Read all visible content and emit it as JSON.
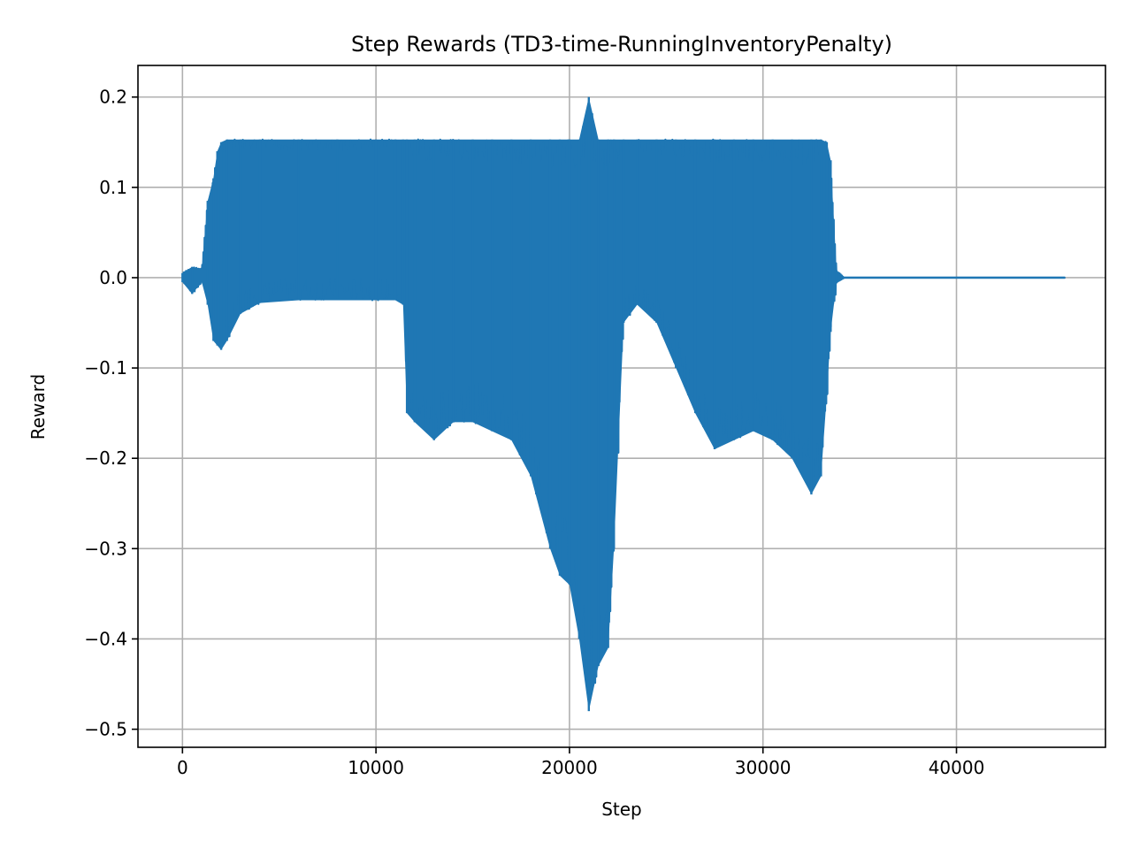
{
  "chart_data": {
    "type": "line",
    "title": "Step Rewards (TD3-time-RunningInventoryPenalty)",
    "xlabel": "Step",
    "ylabel": "Reward",
    "xlim": [
      -2300,
      47700
    ],
    "ylim": [
      -0.52,
      0.235
    ],
    "xticks": [
      0,
      10000,
      20000,
      30000,
      40000
    ],
    "xtick_labels": [
      "0",
      "10000",
      "20000",
      "30000",
      "40000"
    ],
    "yticks": [
      0.2,
      0.1,
      0.0,
      -0.1,
      -0.2,
      -0.3,
      -0.4,
      -0.5
    ],
    "ytick_labels": [
      "0.2",
      "0.1",
      "0.0",
      "−0.1",
      "−0.2",
      "−0.3",
      "−0.4",
      "−0.5"
    ],
    "grid": true,
    "series": [
      {
        "color": "#1f77b4",
        "envelope_note": "dense oscillating signal: per-step reward between lower and upper bounds",
        "x": [
          0,
          500,
          1000,
          1300,
          1600,
          1800,
          2000,
          2300,
          3000,
          4000,
          6000,
          8000,
          10000,
          11000,
          11400,
          11600,
          12000,
          13000,
          14000,
          15000,
          16000,
          17000,
          18000,
          19000,
          19500,
          20000,
          20500,
          21000,
          21500,
          22000,
          22300,
          22800,
          23500,
          24500,
          25500,
          26500,
          27500,
          28500,
          29500,
          30500,
          31500,
          32500,
          33000,
          33300,
          33500,
          33800,
          34200,
          45600
        ],
        "upper": [
          0.005,
          0.012,
          0.01,
          0.085,
          0.11,
          0.14,
          0.15,
          0.153,
          0.153,
          0.153,
          0.153,
          0.153,
          0.153,
          0.153,
          0.153,
          0.153,
          0.153,
          0.153,
          0.153,
          0.153,
          0.153,
          0.153,
          0.153,
          0.153,
          0.153,
          0.153,
          0.153,
          0.2,
          0.153,
          0.153,
          0.153,
          0.153,
          0.153,
          0.153,
          0.153,
          0.153,
          0.153,
          0.153,
          0.153,
          0.153,
          0.153,
          0.153,
          0.153,
          0.15,
          0.13,
          0.008,
          0.0,
          0.0
        ],
        "lower": [
          -0.005,
          -0.018,
          -0.005,
          -0.03,
          -0.07,
          -0.075,
          -0.08,
          -0.07,
          -0.04,
          -0.028,
          -0.025,
          -0.025,
          -0.025,
          -0.025,
          -0.03,
          -0.15,
          -0.16,
          -0.18,
          -0.16,
          -0.16,
          -0.17,
          -0.18,
          -0.22,
          -0.3,
          -0.33,
          -0.34,
          -0.4,
          -0.48,
          -0.43,
          -0.41,
          -0.3,
          -0.05,
          -0.03,
          -0.05,
          -0.1,
          -0.15,
          -0.19,
          -0.18,
          -0.17,
          -0.18,
          -0.2,
          -0.24,
          -0.22,
          -0.13,
          -0.06,
          -0.005,
          0.0,
          0.0
        ]
      }
    ]
  }
}
